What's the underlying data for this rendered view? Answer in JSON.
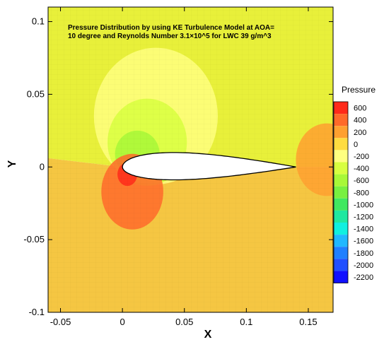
{
  "chart_data": {
    "type": "heatmap",
    "title_lines": [
      "Pressure Distribution by using KE Turbulence Model at AOA=",
      "10 degree and Reynolds Number 3.1×10^5 for LWC 39 g/m^3"
    ],
    "xlabel": "X",
    "ylabel": "Y",
    "xlim": [
      -0.06,
      0.17
    ],
    "ylim": [
      -0.1,
      0.11
    ],
    "x_ticks": [
      -0.05,
      0,
      0.05,
      0.1,
      0.15
    ],
    "x_tick_labels": [
      "-0.05",
      "0",
      "0.05",
      "0.1",
      "0.15"
    ],
    "y_ticks": [
      -0.1,
      -0.05,
      0,
      0.05,
      0.1
    ],
    "y_tick_labels": [
      "-0.1",
      "-0.05",
      "0",
      "0.05",
      "0.1"
    ],
    "grid": false,
    "legend": {
      "title": "Pressure",
      "placement": "right",
      "levels": [
        600,
        400,
        200,
        0,
        -200,
        -400,
        -600,
        -800,
        -1000,
        -1200,
        -1400,
        -1600,
        -1800,
        -2000,
        -2200
      ],
      "labels": [
        "600",
        "400",
        "200",
        "0",
        "-200",
        "-400",
        "-600",
        "-800",
        "-1000",
        "-1200",
        "-1400",
        "-1600",
        "-1800",
        "-2000",
        "-2200"
      ],
      "colors": [
        "#ff2a1a",
        "#ff6a2a",
        "#ffa030",
        "#ffdc40",
        "#ffff80",
        "#d8ff40",
        "#a8f838",
        "#78f040",
        "#40e860",
        "#20e8a0",
        "#10f0e0",
        "#20b8ff",
        "#2080ff",
        "#2050ff",
        "#1010ff"
      ]
    },
    "regions": [
      {
        "name": "upper suction lobe",
        "cx": 0.027,
        "cy": 0.035,
        "rx": 0.05,
        "ry": 0.047,
        "pressure": -250
      },
      {
        "name": "inner suction lobe",
        "cx": 0.02,
        "cy": 0.017,
        "rx": 0.032,
        "ry": 0.03,
        "pressure": -500
      },
      {
        "name": "leading edge suction",
        "cx": 0.012,
        "cy": 0.009,
        "rx": 0.018,
        "ry": 0.016,
        "pressure": -700
      },
      {
        "name": "stagnation lobe",
        "cx": 0.008,
        "cy": -0.017,
        "rx": 0.025,
        "ry": 0.026,
        "pressure": 400
      },
      {
        "name": "stagnation core",
        "cx": 0.004,
        "cy": -0.005,
        "rx": 0.008,
        "ry": 0.008,
        "pressure": 600
      },
      {
        "name": "trailing edge lobe",
        "cx": 0.165,
        "cy": 0.005,
        "rx": 0.025,
        "ry": 0.025,
        "pressure": 200
      }
    ],
    "airfoil": {
      "leading_edge": [
        0.0,
        0.0
      ],
      "trailing_edge": [
        0.14,
        0.0
      ],
      "max_thickness_x": 0.03,
      "max_thickness_y": [
        0.0095,
        -0.0085
      ]
    }
  }
}
